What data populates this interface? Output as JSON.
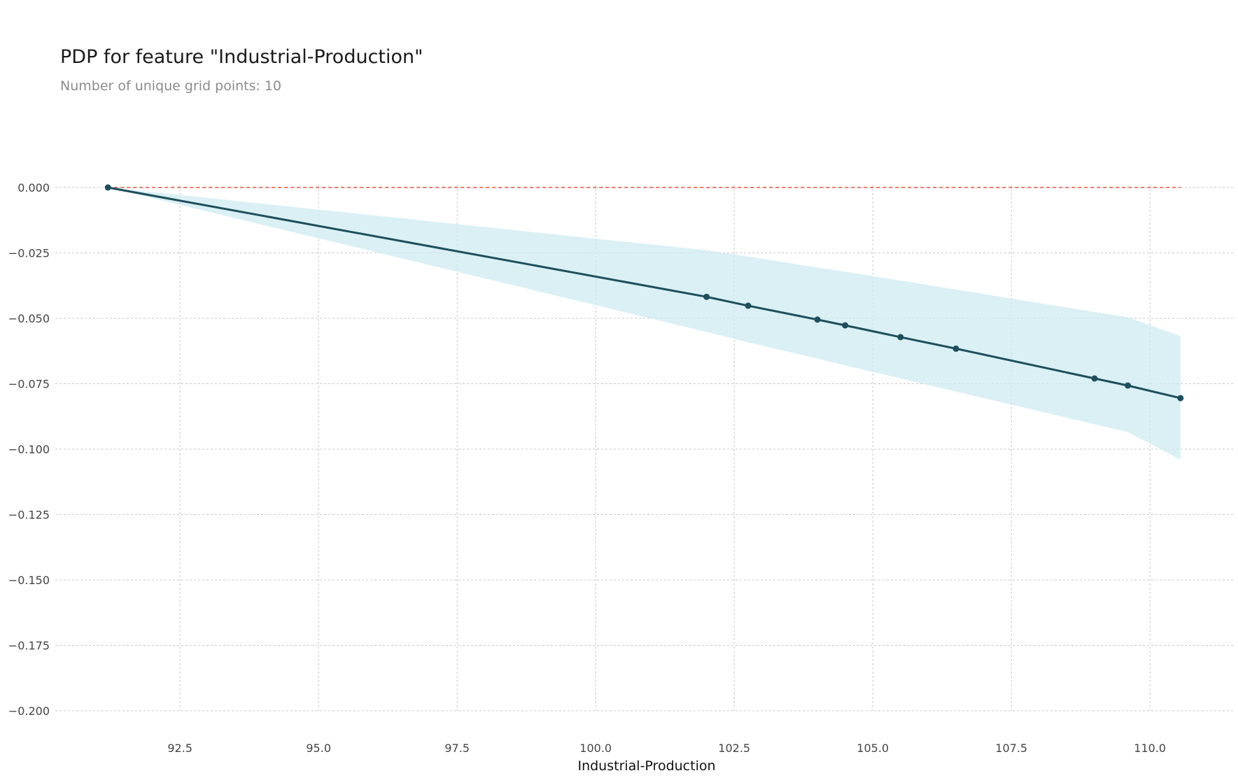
{
  "chart_data": {
    "type": "line",
    "title": "PDP for feature \"Industrial-Production\"",
    "subtitle": "Number of unique grid points: 10",
    "xlabel": "Industrial-Production",
    "ylabel": "",
    "xlim": [
      90.25,
      111.5
    ],
    "ylim": [
      -0.2,
      0.0
    ],
    "x_ticks": [
      92.5,
      95.0,
      97.5,
      100.0,
      102.5,
      105.0,
      107.5,
      110.0
    ],
    "x_tick_labels": [
      "92.5",
      "95.0",
      "97.5",
      "100.0",
      "102.5",
      "105.0",
      "107.5",
      "110.0"
    ],
    "y_ticks": [
      0.0,
      -0.025,
      -0.05,
      -0.075,
      -0.1,
      -0.125,
      -0.15,
      -0.175,
      -0.2
    ],
    "y_tick_labels": [
      "0.000",
      "−0.025",
      "−0.050",
      "−0.075",
      "−0.100",
      "−0.125",
      "−0.150",
      "−0.175",
      "−0.200"
    ],
    "grid": true,
    "x": [
      91.2,
      102.0,
      102.75,
      104.0,
      104.5,
      105.5,
      106.5,
      109.0,
      109.6,
      110.55
    ],
    "y": [
      0.0,
      -0.0418,
      -0.0452,
      -0.0505,
      -0.0527,
      -0.0572,
      -0.0616,
      -0.073,
      -0.0757,
      -0.0805
    ],
    "band_upper": [
      0.0,
      -0.024,
      -0.0264,
      -0.0306,
      -0.0322,
      -0.0356,
      -0.039,
      -0.0476,
      -0.0496,
      -0.0568
    ],
    "band_lower": [
      0.0,
      -0.0552,
      -0.0592,
      -0.0654,
      -0.068,
      -0.073,
      -0.078,
      -0.0905,
      -0.0935,
      -0.104
    ],
    "reference_line": 0.0,
    "colors": {
      "line": "#1e4e5c",
      "band": "#cdebf2",
      "reference": "#e0523d",
      "grid": "#c8c8c8"
    }
  }
}
